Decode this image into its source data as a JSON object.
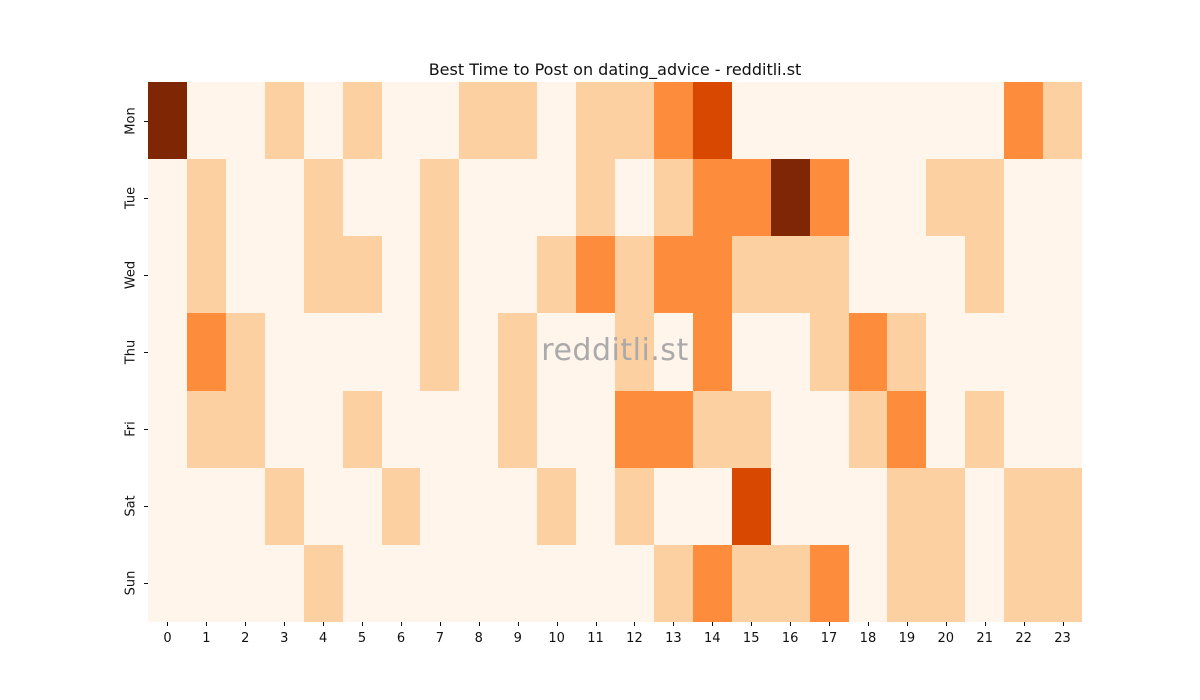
{
  "figure": {
    "background_color": "#ffffff",
    "text_color": "#111111"
  },
  "chart_data": {
    "type": "heatmap",
    "title": "Best Time to Post on dating_advice - redditli.st",
    "watermark": "redditli.st",
    "watermark_color": "#aaaaaa",
    "xlabel": "",
    "ylabel": "",
    "colormap": "Oranges",
    "grid": false,
    "legend": "none",
    "x_tick_labels": [
      "0",
      "1",
      "2",
      "3",
      "4",
      "5",
      "6",
      "7",
      "8",
      "9",
      "10",
      "11",
      "12",
      "13",
      "14",
      "15",
      "16",
      "17",
      "18",
      "19",
      "20",
      "21",
      "22",
      "23"
    ],
    "y_tick_labels": [
      "Mon",
      "Tue",
      "Wed",
      "Thu",
      "Fri",
      "Sat",
      "Sun"
    ],
    "level_colors": [
      "#fff5eb",
      "#fdd0a2",
      "#fd8d3c",
      "#d94801",
      "#7f2704"
    ],
    "level_meaning": "relative posting activity intensity, 0 (lowest) to 4 (highest)",
    "matrix": [
      [
        4,
        0,
        0,
        1,
        0,
        1,
        0,
        0,
        1,
        1,
        0,
        1,
        1,
        2,
        3,
        0,
        0,
        0,
        0,
        0,
        0,
        0,
        2,
        1
      ],
      [
        0,
        1,
        0,
        0,
        1,
        0,
        0,
        1,
        0,
        0,
        0,
        1,
        0,
        1,
        2,
        2,
        4,
        2,
        0,
        0,
        1,
        1,
        0,
        0
      ],
      [
        0,
        1,
        0,
        0,
        1,
        1,
        0,
        1,
        0,
        0,
        1,
        2,
        1,
        2,
        2,
        1,
        1,
        1,
        0,
        0,
        0,
        1,
        0,
        0
      ],
      [
        0,
        2,
        1,
        0,
        0,
        0,
        0,
        1,
        0,
        1,
        0,
        0,
        1,
        0,
        2,
        0,
        0,
        1,
        2,
        1,
        0,
        0,
        0,
        0
      ],
      [
        0,
        1,
        1,
        0,
        0,
        1,
        0,
        0,
        0,
        1,
        0,
        0,
        2,
        2,
        1,
        1,
        0,
        0,
        1,
        2,
        0,
        1,
        0,
        0
      ],
      [
        0,
        0,
        0,
        1,
        0,
        0,
        1,
        0,
        0,
        0,
        1,
        0,
        1,
        0,
        0,
        3,
        0,
        0,
        0,
        1,
        1,
        0,
        1,
        1
      ],
      [
        0,
        0,
        0,
        0,
        1,
        0,
        0,
        0,
        0,
        0,
        0,
        0,
        0,
        1,
        2,
        1,
        1,
        2,
        0,
        1,
        1,
        0,
        1,
        1
      ]
    ]
  }
}
